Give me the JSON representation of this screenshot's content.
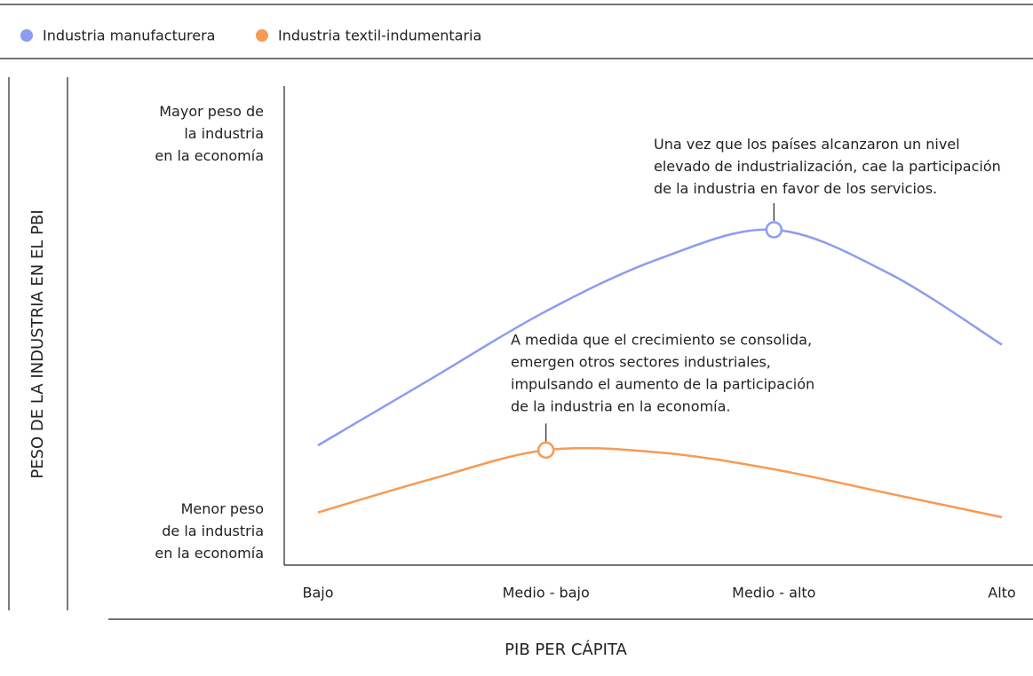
{
  "chart_data": {
    "type": "line",
    "legend_position": "top",
    "xlabel": "PIB PER CÁPITA",
    "ylabel": "PESO DE LA INDUSTRIA EN EL PBI",
    "xlim": [
      0,
      3
    ],
    "xticks": [
      {
        "value": 0,
        "label": "Bajo"
      },
      {
        "value": 1,
        "label": "Medio - bajo"
      },
      {
        "value": 2,
        "label": "Medio - alto"
      },
      {
        "value": 3,
        "label": "Alto"
      }
    ],
    "ylim": [
      0,
      100
    ],
    "yticks": [
      {
        "value": 7,
        "label": "Menor peso\nde la industria\nen la economía"
      },
      {
        "value": 90,
        "label": "Mayor peso de\nla industria\nen la economía"
      }
    ],
    "x": [
      0,
      0.5,
      1,
      1.5,
      2,
      2.5,
      3
    ],
    "series": [
      {
        "name": "Industria manufacturera",
        "color": "#8c9cf0",
        "values": [
          25,
          39,
          53,
          64,
          70,
          61,
          46
        ],
        "marker_index": 4,
        "annotation": "Una vez que los países alcanzaron un nivel\nelevado de industrialización, cae la participación\nde la industria en favor de los servicios."
      },
      {
        "name": "Industria textil-indumentaria",
        "color": "#f79a55",
        "values": [
          11,
          18,
          24,
          23.5,
          20,
          15,
          10
        ],
        "marker_index": 2,
        "annotation": "A medida que el crecimiento se consolida,\nemergen otros sectores industriales,\nimpulsando el aumento de la participación\nde la industria en la economía."
      }
    ]
  }
}
